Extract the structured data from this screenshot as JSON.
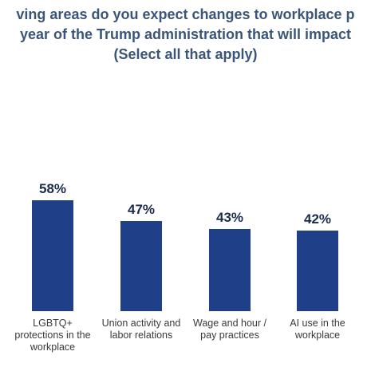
{
  "chart_data": {
    "type": "bar",
    "title_lines": [
      "ving areas do you expect changes to workplace p",
      "year of the Trump administration that will impact",
      "(Select all that apply)"
    ],
    "categories": [
      "LGBTQ+ protections in the workplace",
      "Union activity and labor relations",
      "Wage and hour / pay practices",
      "AI use in the workplace"
    ],
    "values": [
      58,
      47,
      43,
      42
    ],
    "value_labels": [
      "58%",
      "47%",
      "43%",
      "42%"
    ],
    "color": "#1f3f88"
  }
}
